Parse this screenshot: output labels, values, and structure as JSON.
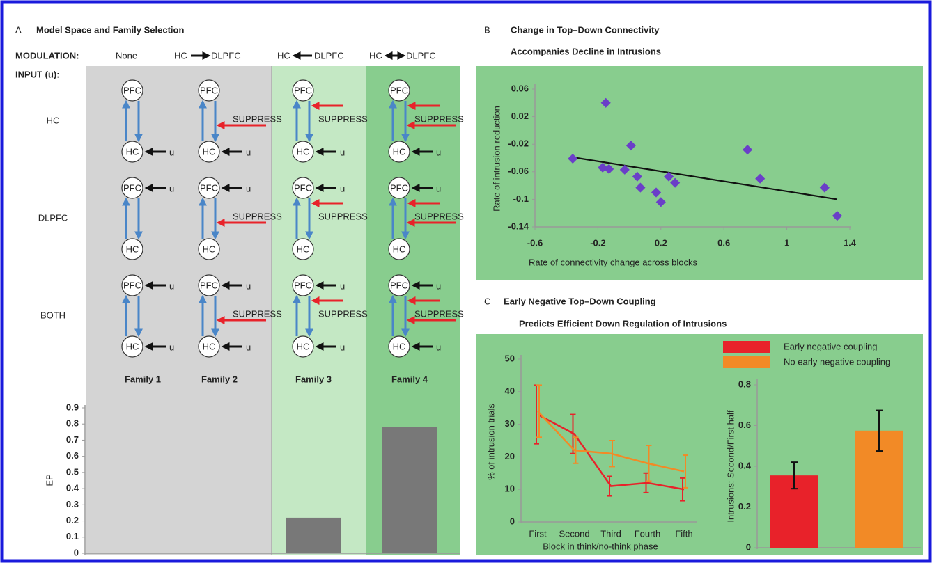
{
  "panel_a": {
    "modulation_label": "MODULATION:",
    "modulations": [
      "None",
      [
        "HC",
        "DLPFC"
      ],
      [
        "HC",
        "DLPFC"
      ],
      [
        "HC",
        "DLPFC"
      ]
    ],
    "input_label": "INPUT (u):",
    "inputs": [
      "HC",
      "DLPFC",
      "BOTH"
    ],
    "node_labels": [
      "PFC",
      "HC"
    ],
    "input_marker": "u",
    "suppress_label": "SUPPRESS"
  },
  "chart_data": [
    {
      "type": "bar",
      "panel": "A",
      "title": "Model Space and Family Selection",
      "categories": [
        "Family 1",
        "Family 2",
        "Family 3",
        "Family 4"
      ],
      "values": [
        0,
        0,
        0.22,
        0.78
      ],
      "color": "#787878",
      "ylabel": "EP",
      "ylim": [
        0,
        0.9
      ],
      "yticks": [
        0,
        0.1,
        0.2,
        0.3,
        0.4,
        0.5,
        0.6,
        0.7,
        0.8,
        0.9
      ],
      "backgrounds": [
        "#d4d4d4",
        "#d4d4d4",
        "#c4e8c4",
        "#88cd8e"
      ]
    },
    {
      "type": "scatter",
      "panel": "B",
      "title": [
        "Change in Top–Down Connectivity",
        "Accompanies Decline in Intrusions"
      ],
      "xlabel": "Rate of connectivity change across blocks",
      "ylabel": "Rate of intrusion reduction",
      "x": [
        -0.36,
        -0.15,
        -0.17,
        -0.13,
        -0.03,
        0.01,
        0.05,
        0.07,
        0.17,
        0.2,
        0.25,
        0.29,
        0.75,
        0.83,
        1.24,
        1.32
      ],
      "y": [
        -0.041,
        0.04,
        -0.054,
        -0.056,
        -0.057,
        -0.022,
        -0.067,
        -0.083,
        -0.09,
        -0.104,
        -0.067,
        -0.076,
        -0.028,
        -0.07,
        -0.083,
        -0.124
      ],
      "color": "#6a3fc8",
      "trend_line": {
        "x": [
          -0.36,
          1.32
        ],
        "y": [
          -0.039,
          -0.1
        ]
      },
      "xlim": [
        -0.6,
        1.4
      ],
      "xticks": [
        -0.6,
        -0.2,
        0.2,
        0.6,
        1,
        1.4
      ],
      "ylim": [
        -0.14,
        0.06
      ],
      "yticks": [
        -0.14,
        -0.1,
        -0.06,
        -0.02,
        0.02,
        0.06
      ]
    },
    {
      "type": "line",
      "panel": "C",
      "title": [
        "Early Negative Top–Down Coupling",
        "Predicts Efficient Down Regulation of Intrusions"
      ],
      "categories": [
        "First",
        "Second",
        "Third",
        "Fourth",
        "Fifth"
      ],
      "xlabel": "Block in think/no-think phase",
      "ylabel": "% of intrusion trials",
      "series": [
        {
          "name": "Early negative coupling",
          "color": "#e8222a",
          "values": [
            33,
            27,
            11,
            12,
            10
          ],
          "errors": [
            9,
            6,
            3,
            3,
            3.5
          ]
        },
        {
          "name": "No early negative coupling",
          "color": "#f28a26",
          "values": [
            34,
            22,
            21,
            18,
            15.5
          ],
          "errors": [
            8,
            4,
            4,
            5.5,
            5
          ]
        }
      ],
      "ylim": [
        0,
        50
      ],
      "yticks": [
        0,
        10,
        20,
        30,
        40,
        50
      ]
    },
    {
      "type": "bar",
      "categories": [
        null,
        null
      ],
      "ylabel": "Intrusions: Second/First half",
      "values": [
        0.355,
        0.575
      ],
      "errors": [
        0.065,
        0.1
      ],
      "colors": [
        "#e8222a",
        "#f28a26"
      ],
      "ylim": [
        0,
        0.8
      ],
      "yticks": [
        0,
        0.2,
        0.4,
        0.6,
        0.8
      ]
    }
  ]
}
